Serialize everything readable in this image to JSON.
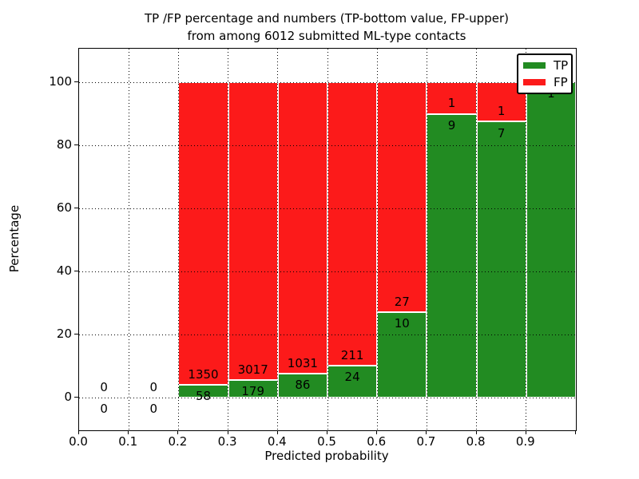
{
  "figure": {
    "title_line1": "TP /FP percentage and numbers (TP-bottom value, FP-upper)",
    "title_line2": "from among 6012 submitted ML-type contacts"
  },
  "axes": {
    "xlabel": "Predicted probability",
    "ylabel": "Percentage",
    "x_tick_labels": [
      "0.0",
      "0.1",
      "0.2",
      "0.3",
      "0.4",
      "0.5",
      "0.6",
      "0.7",
      "0.8",
      "0.9"
    ],
    "y_tick_labels": [
      "0",
      "20",
      "40",
      "60",
      "80",
      "100"
    ]
  },
  "legend": {
    "items": [
      {
        "label": "TP",
        "color": "#228b22"
      },
      {
        "label": "FP",
        "color": "#fc1a1a"
      }
    ]
  },
  "chart_data": {
    "type": "bar",
    "stacked": true,
    "normalized": "percent_of_bin_total",
    "title": "TP /FP percentage and numbers (TP-bottom value, FP-upper) from among 6012 submitted ML-type contacts",
    "xlabel": "Predicted probability",
    "ylabel": "Percentage",
    "xlim": [
      0.0,
      1.0
    ],
    "ylim": [
      -10.5,
      110.5
    ],
    "grid": "dotted",
    "legend_position": "upper right",
    "total_contacts": 6012,
    "bin_width": 0.1,
    "y_ticks": [
      0,
      20,
      40,
      60,
      80,
      100
    ],
    "bins": [
      {
        "x_range": [
          0.0,
          0.1
        ],
        "tp_count": 0,
        "fp_count": 0
      },
      {
        "x_range": [
          0.1,
          0.2
        ],
        "tp_count": 0,
        "fp_count": 0
      },
      {
        "x_range": [
          0.2,
          0.3
        ],
        "tp_count": 58,
        "fp_count": 1350
      },
      {
        "x_range": [
          0.3,
          0.4
        ],
        "tp_count": 179,
        "fp_count": 3017
      },
      {
        "x_range": [
          0.4,
          0.5
        ],
        "tp_count": 86,
        "fp_count": 1031
      },
      {
        "x_range": [
          0.5,
          0.6
        ],
        "tp_count": 24,
        "fp_count": 211
      },
      {
        "x_range": [
          0.6,
          0.7
        ],
        "tp_count": 10,
        "fp_count": 27
      },
      {
        "x_range": [
          0.7,
          0.8
        ],
        "tp_count": 9,
        "fp_count": 1
      },
      {
        "x_range": [
          0.8,
          0.9
        ],
        "tp_count": 7,
        "fp_count": 1
      },
      {
        "x_range": [
          0.9,
          1.0
        ],
        "tp_count": 1,
        "fp_count": 0
      }
    ],
    "series": [
      {
        "name": "TP",
        "color": "#228b22",
        "counts": [
          0,
          0,
          58,
          179,
          86,
          24,
          10,
          9,
          7,
          1
        ]
      },
      {
        "name": "FP",
        "color": "#fc1a1a",
        "counts": [
          0,
          0,
          1350,
          3017,
          1031,
          211,
          27,
          1,
          1,
          0
        ]
      }
    ]
  }
}
